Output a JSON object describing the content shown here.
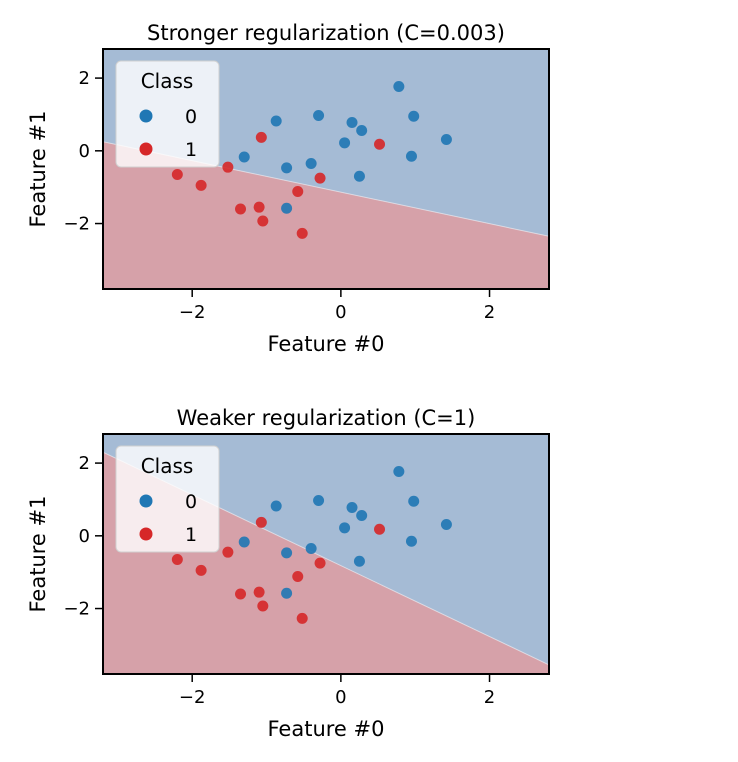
{
  "chart_data": [
    {
      "type": "scatter",
      "title": "Stronger regularization (C=0.003)",
      "xlabel": "Feature #0",
      "ylabel": "Feature #1",
      "xlim": [
        -3.2,
        2.8
      ],
      "ylim": [
        -3.8,
        2.8
      ],
      "xticks": [
        -2,
        0,
        2
      ],
      "yticks": [
        -2,
        0,
        2
      ],
      "xtick_labels": [
        "−2",
        "0",
        "2"
      ],
      "ytick_labels": [
        "−2",
        "0",
        "2"
      ],
      "decision_boundary": {
        "x": [
          -3.2,
          2.8
        ],
        "y": [
          0.25,
          -2.35
        ]
      },
      "legend": {
        "title": "Class",
        "position": "upper-left",
        "entries": [
          "0",
          "1"
        ]
      },
      "colors": {
        "class_0": "#1f77b4",
        "class_1": "#d62728",
        "region_0": "#a5bbd5",
        "region_1": "#d6a1a9"
      },
      "series": [
        {
          "name": "0",
          "points": [
            [
              -0.3,
              0.97
            ],
            [
              0.15,
              0.78
            ],
            [
              0.28,
              0.56
            ],
            [
              0.78,
              1.77
            ],
            [
              0.98,
              0.95
            ],
            [
              1.42,
              0.31
            ],
            [
              0.95,
              -0.15
            ],
            [
              0.05,
              0.22
            ],
            [
              0.25,
              -0.7
            ],
            [
              -0.4,
              -0.35
            ],
            [
              -0.73,
              -1.58
            ],
            [
              -1.3,
              -0.17
            ],
            [
              -0.87,
              0.82
            ],
            [
              -0.73,
              -0.47
            ]
          ]
        },
        {
          "name": "1",
          "points": [
            [
              0.52,
              0.18
            ],
            [
              -1.07,
              0.37
            ],
            [
              -2.2,
              -0.65
            ],
            [
              -1.88,
              -0.95
            ],
            [
              -1.52,
              -0.45
            ],
            [
              -1.35,
              -1.6
            ],
            [
              -1.1,
              -1.55
            ],
            [
              -1.05,
              -1.93
            ],
            [
              -0.58,
              -1.12
            ],
            [
              -0.28,
              -0.75
            ],
            [
              -0.52,
              -2.27
            ]
          ]
        }
      ]
    },
    {
      "type": "scatter",
      "title": "Weaker regularization (C=1)",
      "xlabel": "Feature #0",
      "ylabel": "Feature #1",
      "xlim": [
        -3.2,
        2.8
      ],
      "ylim": [
        -3.8,
        2.8
      ],
      "xticks": [
        -2,
        0,
        2
      ],
      "yticks": [
        -2,
        0,
        2
      ],
      "xtick_labels": [
        "−2",
        "0",
        "2"
      ],
      "ytick_labels": [
        "−2",
        "0",
        "2"
      ],
      "decision_boundary": {
        "x": [
          -3.2,
          2.8
        ],
        "y": [
          2.3,
          -3.55
        ]
      },
      "legend": {
        "title": "Class",
        "position": "upper-left",
        "entries": [
          "0",
          "1"
        ]
      },
      "colors": {
        "class_0": "#1f77b4",
        "class_1": "#d62728",
        "region_0": "#a5bbd5",
        "region_1": "#d6a1a9"
      },
      "series": [
        {
          "name": "0",
          "points": [
            [
              -0.3,
              0.97
            ],
            [
              0.15,
              0.78
            ],
            [
              0.28,
              0.56
            ],
            [
              0.78,
              1.77
            ],
            [
              0.98,
              0.95
            ],
            [
              1.42,
              0.31
            ],
            [
              0.95,
              -0.15
            ],
            [
              0.05,
              0.22
            ],
            [
              0.25,
              -0.7
            ],
            [
              -0.4,
              -0.35
            ],
            [
              -0.73,
              -1.58
            ],
            [
              -1.3,
              -0.17
            ],
            [
              -0.87,
              0.82
            ],
            [
              -0.73,
              -0.47
            ]
          ]
        },
        {
          "name": "1",
          "points": [
            [
              0.52,
              0.18
            ],
            [
              -1.07,
              0.37
            ],
            [
              -2.2,
              -0.65
            ],
            [
              -1.88,
              -0.95
            ],
            [
              -1.52,
              -0.45
            ],
            [
              -1.35,
              -1.6
            ],
            [
              -1.1,
              -1.55
            ],
            [
              -1.05,
              -1.93
            ],
            [
              -0.58,
              -1.12
            ],
            [
              -0.28,
              -0.75
            ],
            [
              -0.52,
              -2.27
            ]
          ]
        }
      ]
    }
  ]
}
